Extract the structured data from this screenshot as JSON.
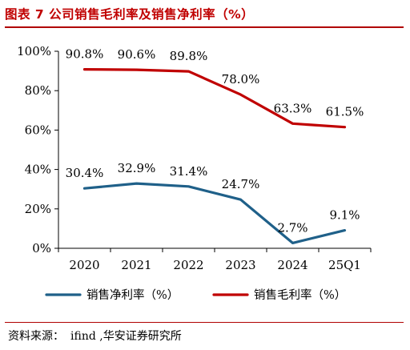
{
  "title": "图表 7  公司销售毛利率及销售净利率（%）",
  "source": {
    "prefix": "资料来源：",
    "text": "ifind ,华安证券研究所"
  },
  "colors": {
    "net": "#1f6089",
    "gross": "#c00000",
    "title": "#c00000"
  },
  "chart_data": {
    "type": "line",
    "categories": [
      "2020",
      "2021",
      "2022",
      "2023",
      "2024",
      "25Q1"
    ],
    "ylim": [
      0,
      100
    ],
    "y_ticks": [
      "0%",
      "20%",
      "40%",
      "60%",
      "80%",
      "100%"
    ],
    "y_tick_values": [
      0,
      20,
      40,
      60,
      80,
      100
    ],
    "grid": false,
    "legend_position": "bottom",
    "series": [
      {
        "name": "销售净利率（%）",
        "color": "#1f6089",
        "values": [
          30.4,
          32.9,
          31.4,
          24.7,
          2.7,
          9.1
        ],
        "labels": [
          "30.4%",
          "32.9%",
          "31.4%",
          "24.7%",
          "2.7%",
          "9.1%"
        ]
      },
      {
        "name": "销售毛利率（%）",
        "color": "#c00000",
        "values": [
          90.8,
          90.6,
          89.8,
          78.0,
          63.3,
          61.5
        ],
        "labels": [
          "90.8%",
          "90.6%",
          "89.8%",
          "78.0%",
          "63.3%",
          "61.5%"
        ]
      }
    ]
  }
}
